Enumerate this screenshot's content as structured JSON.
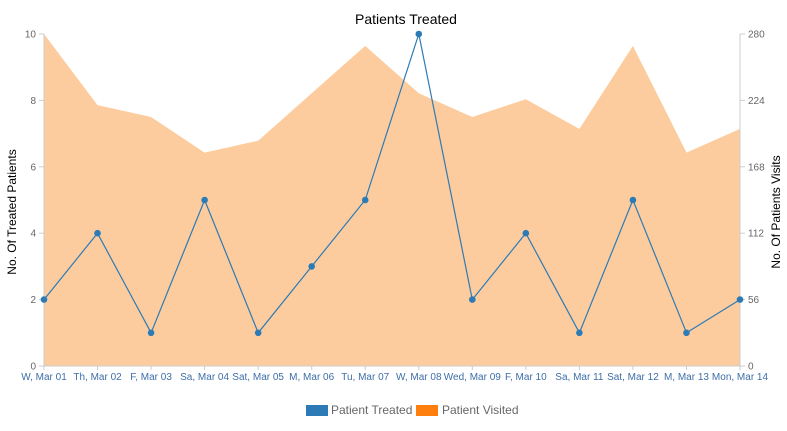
{
  "chart_data": {
    "type": "line",
    "title": "Patients Treated",
    "ylabel": "No. Of Treated Patients",
    "y2label": "No. Of Patients Visits",
    "categories": [
      "W, Mar 01",
      "Th, Mar 02",
      "F, Mar 03",
      "Sa, Mar 04",
      "Sat, Mar 05",
      "M, Mar 06",
      "Tu, Mar 07",
      "W, Mar 08",
      "Wed, Mar 09",
      "F, Mar 10",
      "Sa, Mar 11",
      "Sat, Mar 12",
      "M, Mar 13",
      "Mon, Mar 14"
    ],
    "ylim": [
      0,
      10
    ],
    "yticks": [
      "0",
      "2",
      "4",
      "6",
      "8",
      "10"
    ],
    "y2lim": [
      0,
      280
    ],
    "y2ticks": [
      "0",
      "56",
      "112",
      "168",
      "224",
      "280"
    ],
    "series": [
      {
        "name": "Patient Treated",
        "type": "line",
        "axis": "left",
        "color": "#2c7bb6",
        "values": [
          2,
          4,
          1,
          5,
          1,
          3,
          5,
          10,
          2,
          4,
          1,
          5,
          1,
          2
        ]
      },
      {
        "name": "Patient Visited",
        "type": "area",
        "axis": "right",
        "color": "#ff7f0e",
        "fill": "#fdcc9e",
        "values": [
          280,
          220,
          210,
          180,
          190,
          230,
          270,
          230,
          210,
          225,
          200,
          270,
          180,
          200
        ]
      }
    ],
    "legend_position": "bottom",
    "grid": false
  }
}
